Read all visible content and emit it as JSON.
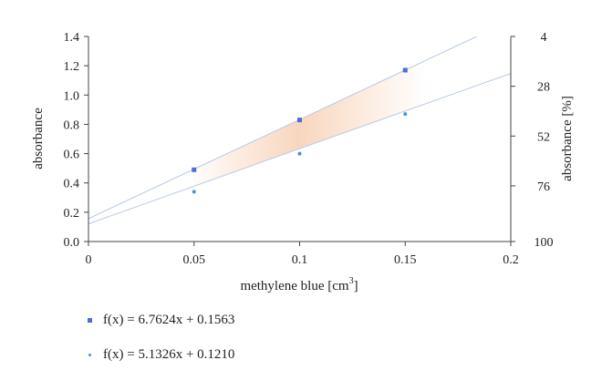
{
  "chart_data": {
    "type": "scatter",
    "xlabel": "methylene blue [cm",
    "xlabel_sup": "3",
    "xlabel_suffix": "]",
    "ylabel": "absorbance",
    "y2label": "absorbance [%]",
    "xlim": [
      0,
      0.2
    ],
    "ylim": [
      0,
      1.4
    ],
    "x_ticks": [
      "0",
      "0.05",
      "0.1",
      "0.15",
      "0.2"
    ],
    "y_ticks": [
      "0.0",
      "0.2",
      "0.4",
      "0.6",
      "0.8",
      "1.0",
      "1.2",
      "1.4"
    ],
    "y2_ticks": [
      {
        "label": "4",
        "at": 1.4
      },
      {
        "label": "28",
        "at": 1.06
      },
      {
        "label": "52",
        "at": 0.72
      },
      {
        "label": "76",
        "at": 0.38
      },
      {
        "label": "100",
        "at": 0.0
      }
    ],
    "grid": false,
    "series": [
      {
        "name": "f(x) = 6.7624x + 0.1563",
        "color": "#4a6fd1",
        "marker": "square",
        "x": [
          0.05,
          0.1,
          0.15
        ],
        "y": [
          0.49,
          0.83,
          1.17
        ],
        "fit": {
          "slope": 6.7624,
          "intercept": 0.1563
        }
      },
      {
        "name": "f(x) = 5.1326x + 0.1210",
        "color": "#4a90d9",
        "marker": "dot",
        "x": [
          0.05,
          0.1,
          0.15
        ],
        "y": [
          0.34,
          0.6,
          0.87
        ],
        "fit": {
          "slope": 5.1326,
          "intercept": 0.121
        }
      }
    ],
    "fit_line_color": "#b8c8e6",
    "band_color": "#f6c9a8",
    "band_x_range": [
      0.05,
      0.16
    ]
  }
}
